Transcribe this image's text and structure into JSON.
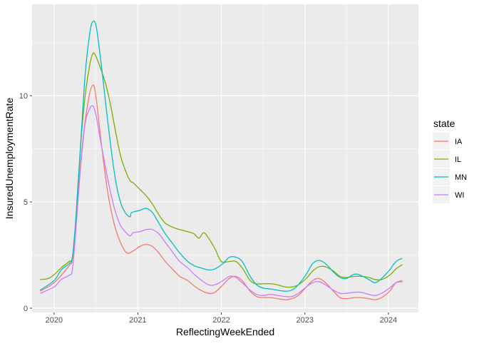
{
  "chart_data": {
    "type": "line",
    "xlabel": "ReflectingWeekEnded",
    "ylabel": "InsuredUnemploymentRate",
    "x_tick_labels": [
      "2020",
      "2021",
      "2022",
      "2023",
      "2024"
    ],
    "y_tick_labels": [
      "0",
      "5",
      "10"
    ],
    "xlim": [
      "2019-09-27",
      "2024-05-11"
    ],
    "ylim": [
      -0.2,
      14.3
    ],
    "legend": {
      "title": "state",
      "position": "right"
    },
    "grid": true,
    "series": [
      {
        "name": "IA",
        "color": "#F8766D",
        "points": [
          [
            "2019-11-01",
            0.8
          ],
          [
            "2020-01-01",
            1.2
          ],
          [
            "2020-03-07",
            2.0
          ],
          [
            "2020-03-21",
            2.3
          ],
          [
            "2020-04-04",
            3.8
          ],
          [
            "2020-05-02",
            7.5
          ],
          [
            "2020-05-30",
            9.8
          ],
          [
            "2020-06-20",
            10.5
          ],
          [
            "2020-07-04",
            9.8
          ],
          [
            "2020-07-25",
            7.8
          ],
          [
            "2020-08-22",
            5.5
          ],
          [
            "2020-09-19",
            4.0
          ],
          [
            "2020-10-17",
            3.1
          ],
          [
            "2020-11-14",
            2.6
          ],
          [
            "2020-12-12",
            2.7
          ],
          [
            "2021-01-09",
            2.9
          ],
          [
            "2021-02-06",
            3.0
          ],
          [
            "2021-03-06",
            2.9
          ],
          [
            "2021-04-03",
            2.6
          ],
          [
            "2021-05-01",
            2.2
          ],
          [
            "2021-06-05",
            1.8
          ],
          [
            "2021-07-03",
            1.5
          ],
          [
            "2021-08-07",
            1.3
          ],
          [
            "2021-09-04",
            1.05
          ],
          [
            "2021-10-02",
            0.85
          ],
          [
            "2021-11-06",
            0.7
          ],
          [
            "2021-12-04",
            0.75
          ],
          [
            "2022-01-08",
            1.1
          ],
          [
            "2022-02-05",
            1.4
          ],
          [
            "2022-03-05",
            1.5
          ],
          [
            "2022-04-02",
            1.3
          ],
          [
            "2022-05-07",
            0.8
          ],
          [
            "2022-06-04",
            0.55
          ],
          [
            "2022-07-02",
            0.5
          ],
          [
            "2022-08-06",
            0.5
          ],
          [
            "2022-09-03",
            0.45
          ],
          [
            "2022-10-08",
            0.4
          ],
          [
            "2022-11-05",
            0.45
          ],
          [
            "2022-12-03",
            0.6
          ],
          [
            "2023-01-07",
            1.0
          ],
          [
            "2023-02-04",
            1.3
          ],
          [
            "2023-03-04",
            1.4
          ],
          [
            "2023-04-01",
            1.2
          ],
          [
            "2023-05-06",
            0.8
          ],
          [
            "2023-06-03",
            0.5
          ],
          [
            "2023-07-01",
            0.45
          ],
          [
            "2023-08-05",
            0.5
          ],
          [
            "2023-09-02",
            0.5
          ],
          [
            "2023-10-07",
            0.45
          ],
          [
            "2023-11-04",
            0.4
          ],
          [
            "2023-12-02",
            0.5
          ],
          [
            "2024-01-06",
            0.8
          ],
          [
            "2024-02-03",
            1.2
          ],
          [
            "2024-03-02",
            1.3
          ]
        ]
      },
      {
        "name": "IL",
        "color": "#7CAE00",
        "points": [
          [
            "2019-11-01",
            1.35
          ],
          [
            "2019-12-07",
            1.4
          ],
          [
            "2020-01-04",
            1.6
          ],
          [
            "2020-02-01",
            1.9
          ],
          [
            "2020-03-07",
            2.2
          ],
          [
            "2020-03-21",
            2.4
          ],
          [
            "2020-04-04",
            4.0
          ],
          [
            "2020-04-25",
            7.5
          ],
          [
            "2020-05-16",
            10.0
          ],
          [
            "2020-06-06",
            11.5
          ],
          [
            "2020-06-20",
            12.0
          ],
          [
            "2020-07-04",
            11.8
          ],
          [
            "2020-07-25",
            11.2
          ],
          [
            "2020-08-15",
            10.5
          ],
          [
            "2020-09-05",
            9.5
          ],
          [
            "2020-09-26",
            8.3
          ],
          [
            "2020-10-17",
            7.2
          ],
          [
            "2020-11-07",
            6.5
          ],
          [
            "2020-11-28",
            6.0
          ],
          [
            "2020-12-12",
            5.9
          ],
          [
            "2021-01-09",
            5.6
          ],
          [
            "2021-02-06",
            5.3
          ],
          [
            "2021-03-06",
            4.9
          ],
          [
            "2021-04-03",
            4.4
          ],
          [
            "2021-05-01",
            4.0
          ],
          [
            "2021-06-05",
            3.8
          ],
          [
            "2021-07-03",
            3.7
          ],
          [
            "2021-08-07",
            3.6
          ],
          [
            "2021-09-04",
            3.5
          ],
          [
            "2021-09-25",
            3.3
          ],
          [
            "2021-10-16",
            3.55
          ],
          [
            "2021-11-06",
            3.3
          ],
          [
            "2021-12-04",
            2.8
          ],
          [
            "2022-01-01",
            2.2
          ],
          [
            "2022-02-05",
            2.2
          ],
          [
            "2022-03-05",
            2.2
          ],
          [
            "2022-04-02",
            1.9
          ],
          [
            "2022-05-07",
            1.3
          ],
          [
            "2022-06-04",
            1.15
          ],
          [
            "2022-07-02",
            1.15
          ],
          [
            "2022-08-06",
            1.15
          ],
          [
            "2022-09-03",
            1.1
          ],
          [
            "2022-10-08",
            1.0
          ],
          [
            "2022-11-05",
            1.0
          ],
          [
            "2022-12-03",
            1.1
          ],
          [
            "2023-01-07",
            1.4
          ],
          [
            "2023-02-04",
            1.75
          ],
          [
            "2023-03-04",
            1.95
          ],
          [
            "2023-04-01",
            1.95
          ],
          [
            "2023-05-06",
            1.75
          ],
          [
            "2023-06-03",
            1.5
          ],
          [
            "2023-07-01",
            1.45
          ],
          [
            "2023-08-05",
            1.5
          ],
          [
            "2023-09-02",
            1.5
          ],
          [
            "2023-10-07",
            1.45
          ],
          [
            "2023-11-04",
            1.35
          ],
          [
            "2023-12-02",
            1.35
          ],
          [
            "2024-01-06",
            1.55
          ],
          [
            "2024-02-03",
            1.85
          ],
          [
            "2024-03-02",
            2.05
          ]
        ]
      },
      {
        "name": "MN",
        "color": "#00BFC4",
        "points": [
          [
            "2019-11-01",
            0.85
          ],
          [
            "2020-01-01",
            1.3
          ],
          [
            "2020-02-01",
            1.8
          ],
          [
            "2020-03-07",
            2.1
          ],
          [
            "2020-03-21",
            2.4
          ],
          [
            "2020-04-04",
            4.0
          ],
          [
            "2020-04-25",
            7.5
          ],
          [
            "2020-05-16",
            11.0
          ],
          [
            "2020-06-06",
            13.0
          ],
          [
            "2020-06-20",
            13.5
          ],
          [
            "2020-07-04",
            13.2
          ],
          [
            "2020-07-25",
            11.5
          ],
          [
            "2020-08-15",
            9.5
          ],
          [
            "2020-09-05",
            7.6
          ],
          [
            "2020-09-26",
            6.0
          ],
          [
            "2020-10-17",
            5.0
          ],
          [
            "2020-11-07",
            4.5
          ],
          [
            "2020-11-28",
            4.3
          ],
          [
            "2020-12-05",
            4.5
          ],
          [
            "2021-01-09",
            4.6
          ],
          [
            "2021-02-06",
            4.7
          ],
          [
            "2021-03-06",
            4.5
          ],
          [
            "2021-04-03",
            4.0
          ],
          [
            "2021-05-01",
            3.5
          ],
          [
            "2021-06-05",
            3.0
          ],
          [
            "2021-07-03",
            2.6
          ],
          [
            "2021-08-07",
            2.2
          ],
          [
            "2021-09-04",
            2.0
          ],
          [
            "2021-10-02",
            1.9
          ],
          [
            "2021-11-06",
            1.8
          ],
          [
            "2021-12-04",
            1.85
          ],
          [
            "2022-01-08",
            2.1
          ],
          [
            "2022-02-05",
            2.4
          ],
          [
            "2022-03-05",
            2.4
          ],
          [
            "2022-04-02",
            2.2
          ],
          [
            "2022-05-07",
            1.5
          ],
          [
            "2022-06-04",
            1.1
          ],
          [
            "2022-07-02",
            0.95
          ],
          [
            "2022-08-06",
            0.9
          ],
          [
            "2022-09-03",
            0.85
          ],
          [
            "2022-10-08",
            0.8
          ],
          [
            "2022-11-05",
            0.85
          ],
          [
            "2022-12-03",
            1.1
          ],
          [
            "2023-01-07",
            1.6
          ],
          [
            "2023-02-04",
            2.1
          ],
          [
            "2023-03-04",
            2.25
          ],
          [
            "2023-04-01",
            2.1
          ],
          [
            "2023-05-06",
            1.7
          ],
          [
            "2023-06-03",
            1.45
          ],
          [
            "2023-07-01",
            1.4
          ],
          [
            "2023-08-05",
            1.6
          ],
          [
            "2023-09-02",
            1.55
          ],
          [
            "2023-10-07",
            1.35
          ],
          [
            "2023-11-04",
            1.2
          ],
          [
            "2023-12-02",
            1.4
          ],
          [
            "2024-01-06",
            1.8
          ],
          [
            "2024-02-03",
            2.2
          ],
          [
            "2024-03-02",
            2.35
          ]
        ]
      },
      {
        "name": "WI",
        "color": "#C77CFF",
        "points": [
          [
            "2019-11-01",
            0.7
          ],
          [
            "2020-01-01",
            1.0
          ],
          [
            "2020-02-01",
            1.35
          ],
          [
            "2020-03-07",
            1.55
          ],
          [
            "2020-03-21",
            1.8
          ],
          [
            "2020-04-04",
            3.5
          ],
          [
            "2020-04-25",
            6.5
          ],
          [
            "2020-05-16",
            8.7
          ],
          [
            "2020-06-06",
            9.4
          ],
          [
            "2020-06-20",
            9.5
          ],
          [
            "2020-07-04",
            9.0
          ],
          [
            "2020-07-25",
            7.7
          ],
          [
            "2020-08-15",
            6.5
          ],
          [
            "2020-09-05",
            5.4
          ],
          [
            "2020-09-26",
            4.5
          ],
          [
            "2020-10-17",
            3.9
          ],
          [
            "2020-11-07",
            3.6
          ],
          [
            "2020-11-28",
            3.4
          ],
          [
            "2020-12-12",
            3.55
          ],
          [
            "2021-01-09",
            3.6
          ],
          [
            "2021-02-06",
            3.7
          ],
          [
            "2021-03-06",
            3.7
          ],
          [
            "2021-04-03",
            3.5
          ],
          [
            "2021-05-01",
            3.1
          ],
          [
            "2021-06-05",
            2.6
          ],
          [
            "2021-07-03",
            2.2
          ],
          [
            "2021-08-07",
            1.9
          ],
          [
            "2021-09-04",
            1.6
          ],
          [
            "2021-10-02",
            1.35
          ],
          [
            "2021-11-06",
            1.1
          ],
          [
            "2021-12-04",
            1.1
          ],
          [
            "2022-01-08",
            1.3
          ],
          [
            "2022-02-05",
            1.5
          ],
          [
            "2022-03-05",
            1.45
          ],
          [
            "2022-04-02",
            1.2
          ],
          [
            "2022-05-07",
            0.85
          ],
          [
            "2022-06-04",
            0.65
          ],
          [
            "2022-07-02",
            0.6
          ],
          [
            "2022-08-06",
            0.65
          ],
          [
            "2022-09-03",
            0.6
          ],
          [
            "2022-10-08",
            0.55
          ],
          [
            "2022-11-05",
            0.55
          ],
          [
            "2022-12-03",
            0.7
          ],
          [
            "2023-01-07",
            1.0
          ],
          [
            "2023-02-04",
            1.2
          ],
          [
            "2023-03-04",
            1.25
          ],
          [
            "2023-04-01",
            1.1
          ],
          [
            "2023-05-06",
            0.85
          ],
          [
            "2023-06-03",
            0.7
          ],
          [
            "2023-07-01",
            0.7
          ],
          [
            "2023-08-05",
            0.75
          ],
          [
            "2023-09-02",
            0.75
          ],
          [
            "2023-10-07",
            0.65
          ],
          [
            "2023-11-04",
            0.6
          ],
          [
            "2023-12-02",
            0.7
          ],
          [
            "2024-01-06",
            0.95
          ],
          [
            "2024-02-03",
            1.2
          ],
          [
            "2024-03-02",
            1.25
          ]
        ]
      }
    ]
  }
}
